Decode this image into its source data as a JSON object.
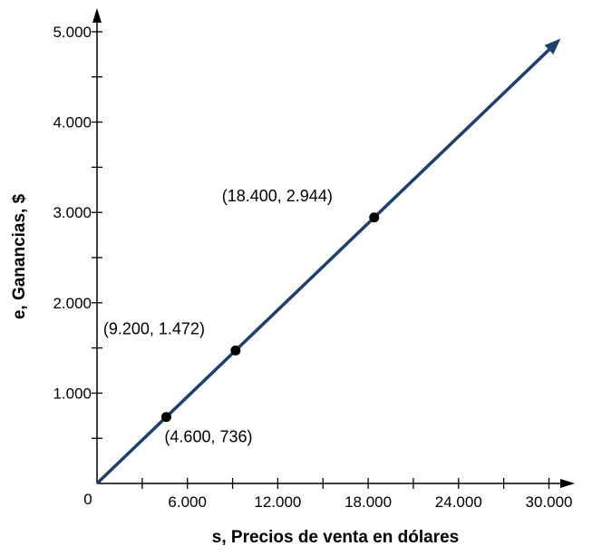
{
  "chart_data": {
    "type": "line",
    "xlabel": "s, Precios de venta en dólares",
    "ylabel": "e, Ganancias, $",
    "xlim": [
      0,
      30000
    ],
    "ylim": [
      0,
      5000
    ],
    "origin_label": "0",
    "x_ticks": [
      {
        "value": 6000,
        "label": "6.000"
      },
      {
        "value": 12000,
        "label": "12.000"
      },
      {
        "value": 18000,
        "label": "18.000"
      },
      {
        "value": 24000,
        "label": "24.000"
      },
      {
        "value": 30000,
        "label": "30.000"
      }
    ],
    "y_ticks": [
      {
        "value": 1000,
        "label": "1.000"
      },
      {
        "value": 2000,
        "label": "2.000"
      },
      {
        "value": 3000,
        "label": "3.000"
      },
      {
        "value": 4000,
        "label": "4.000"
      },
      {
        "value": 5000,
        "label": "5.000"
      }
    ],
    "x_minor_step": 3000,
    "y_minor_step": 500,
    "grid": false,
    "line": {
      "slope": 0.16,
      "intercept": 0,
      "color": "#1f3f6e",
      "arrow_end": true
    },
    "points": [
      {
        "x": 4600,
        "y": 736,
        "label": "(4.600, 736)"
      },
      {
        "x": 9200,
        "y": 1472,
        "label": "(9.200, 1.472)"
      },
      {
        "x": 18400,
        "y": 2944,
        "label": "(18.400, 2.944)"
      }
    ]
  }
}
